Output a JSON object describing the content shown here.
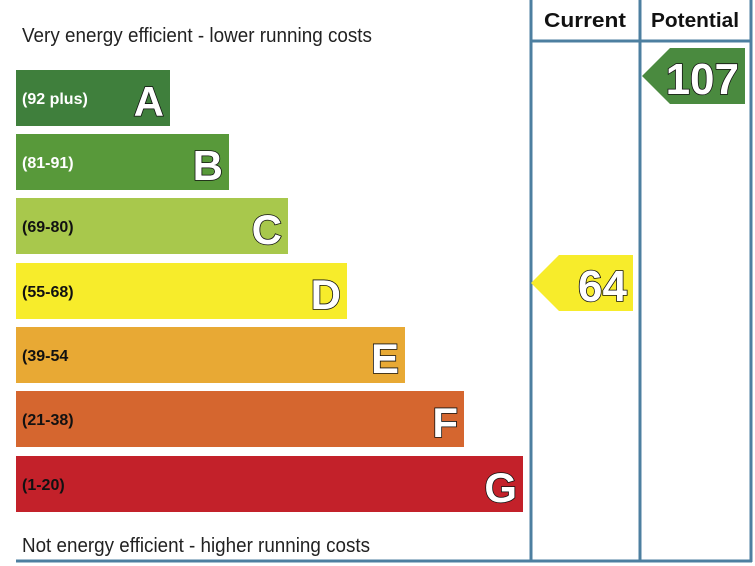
{
  "chart_data": {
    "type": "bar",
    "top_caption": "Very energy efficient - lower running costs",
    "bottom_caption": "Not energy efficient - higher running costs",
    "columns": [
      "Current",
      "Potential"
    ],
    "bands": [
      {
        "letter": "A",
        "range": "(92 plus)",
        "color": "#3f7f3c",
        "text_color": "#ffffff"
      },
      {
        "letter": "B",
        "range": "(81-91)",
        "color": "#58993a",
        "text_color": "#ffffff"
      },
      {
        "letter": "C",
        "range": "(69-80)",
        "color": "#a8c84c",
        "text_color": "#111111"
      },
      {
        "letter": "D",
        "range": "(55-68)",
        "color": "#f7ec2b",
        "text_color": "#111111"
      },
      {
        "letter": "E",
        "range": "(39-54",
        "color": "#e8a934",
        "text_color": "#111111"
      },
      {
        "letter": "F",
        "range": "(21-38)",
        "color": "#d5662f",
        "text_color": "#111111"
      },
      {
        "letter": "G",
        "range": "(1-20)",
        "color": "#c3212a",
        "text_color": "#111111"
      }
    ],
    "current": {
      "value": "64",
      "band": "D",
      "color": "#f7ec2b"
    },
    "potential": {
      "value": "107",
      "band": "A",
      "color": "#4a8a3f"
    },
    "line_color": "#4d7fa0"
  }
}
